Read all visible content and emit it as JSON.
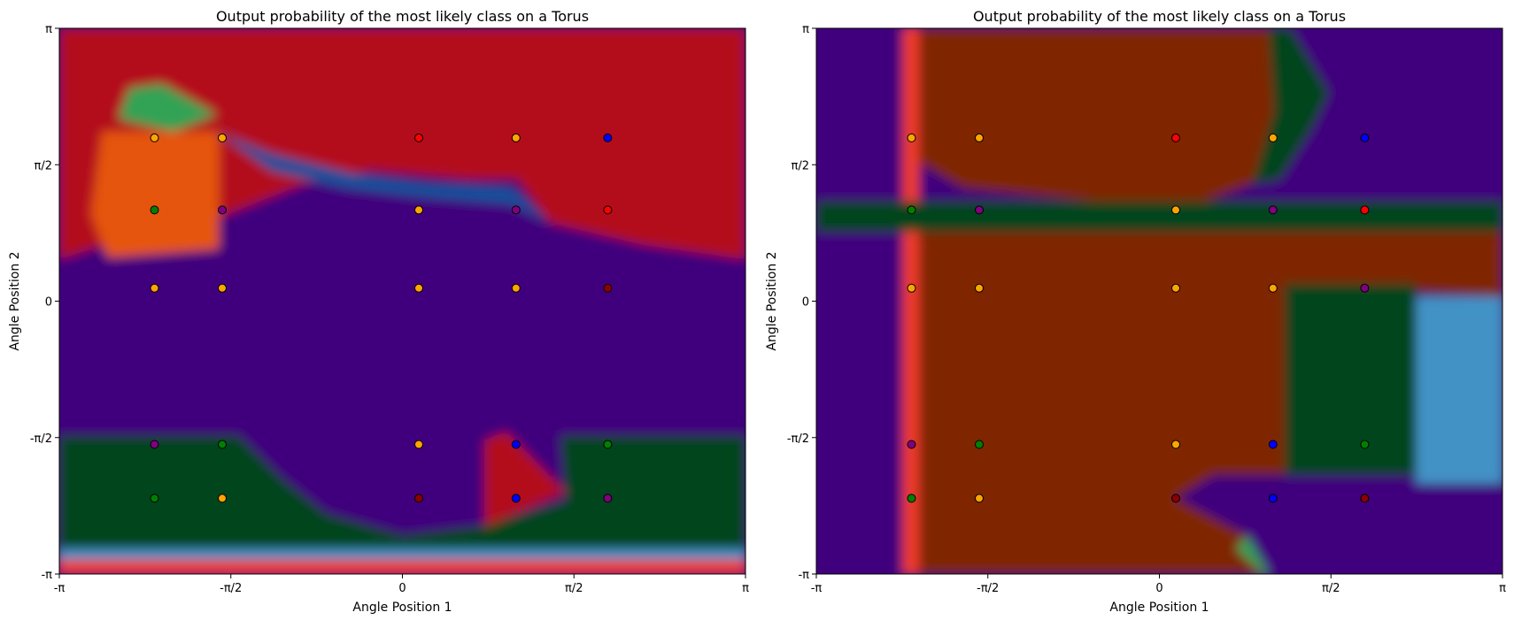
{
  "class_colors": {
    "orange": "#ffa500",
    "purple": "#800080",
    "green": "#008000",
    "red": "#ff0000",
    "blue": "#0000ff",
    "darkred": "#8b0000"
  },
  "chart_data": [
    {
      "type": "heatmap",
      "title": "Output probability of the most likely class on a Torus",
      "xlabel": "Angle Position 1",
      "ylabel": "Angle Position 2",
      "xlim": [
        -3.1416,
        3.1416
      ],
      "ylim": [
        -3.1416,
        3.1416
      ],
      "xticks": [
        {
          "v": -3.1416,
          "label": "-π"
        },
        {
          "v": -1.5708,
          "label": "-π/2"
        },
        {
          "v": 0,
          "label": "0"
        },
        {
          "v": 1.5708,
          "label": "π/2"
        },
        {
          "v": 3.1416,
          "label": "π"
        }
      ],
      "yticks": [
        {
          "v": -3.1416,
          "label": "-π"
        },
        {
          "v": -1.5708,
          "label": "-π/2"
        },
        {
          "v": 0,
          "label": "0"
        },
        {
          "v": 1.5708,
          "label": "π/2"
        },
        {
          "v": 3.1416,
          "label": "π"
        }
      ],
      "regions": [
        {
          "cls": "red",
          "prob": "high",
          "points": [
            [
              -3.1416,
              0.48
            ],
            [
              -2.4,
              0.78
            ],
            [
              -1.6,
              1.0
            ],
            [
              -0.9,
              1.35
            ],
            [
              -0.3,
              1.5
            ],
            [
              0.6,
              1.4
            ],
            [
              1.05,
              1.4
            ],
            [
              1.35,
              0.9
            ],
            [
              2.2,
              0.65
            ],
            [
              3.1416,
              0.48
            ],
            [
              3.1416,
              3.1416
            ],
            [
              -3.1416,
              3.1416
            ]
          ]
        },
        {
          "cls": "orange",
          "prob": "mid",
          "points": [
            [
              -2.75,
              1.95
            ],
            [
              -1.68,
              1.95
            ],
            [
              -1.68,
              0.6
            ],
            [
              -2.7,
              0.5
            ],
            [
              -2.85,
              1.0
            ]
          ]
        },
        {
          "cls": "green",
          "prob": "mid",
          "points": [
            [
              -2.5,
              2.45
            ],
            [
              -2.2,
              2.5
            ],
            [
              -1.7,
              2.15
            ],
            [
              -2.1,
              1.95
            ],
            [
              -2.6,
              2.1
            ]
          ]
        },
        {
          "cls": "blue",
          "prob": "high",
          "points": [
            [
              -1.7,
              1.95
            ],
            [
              -1.2,
              1.7
            ],
            [
              -0.4,
              1.45
            ],
            [
              0.2,
              1.35
            ],
            [
              1.0,
              1.3
            ],
            [
              1.35,
              0.9
            ],
            [
              1.0,
              1.12
            ],
            [
              0.2,
              1.2
            ],
            [
              -0.5,
              1.3
            ],
            [
              -1.2,
              1.5
            ]
          ]
        },
        {
          "cls": "purple",
          "prob": "high",
          "points": [
            [
              -3.1416,
              0.48
            ],
            [
              3.1416,
              0.48
            ],
            [
              3.1416,
              -1.55
            ],
            [
              -3.1416,
              -1.55
            ]
          ]
        },
        {
          "cls": "green",
          "prob": "high",
          "points": [
            [
              -3.1416,
              -1.55
            ],
            [
              -1.5,
              -1.55
            ],
            [
              -1.1,
              -2.05
            ],
            [
              -0.7,
              -2.45
            ],
            [
              0,
              -2.7
            ],
            [
              0.7,
              -2.6
            ],
            [
              1.5,
              -2.3
            ],
            [
              1.45,
              -1.55
            ],
            [
              3.1416,
              -1.55
            ],
            [
              3.1416,
              -2.85
            ],
            [
              -3.1416,
              -2.85
            ]
          ]
        },
        {
          "cls": "red",
          "prob": "high",
          "points": [
            [
              0.75,
              -1.6
            ],
            [
              0.95,
              -1.5
            ],
            [
              1.5,
              -2.2
            ],
            [
              0.75,
              -2.6
            ]
          ]
        },
        {
          "cls": "blue",
          "prob": "mid",
          "points": [
            [
              -3.1416,
              -2.85
            ],
            [
              3.1416,
              -2.85
            ],
            [
              3.1416,
              -2.98
            ],
            [
              -3.1416,
              -2.98
            ]
          ]
        },
        {
          "cls": "red",
          "prob": "mid",
          "points": [
            [
              -3.1416,
              -2.98
            ],
            [
              3.1416,
              -2.98
            ],
            [
              3.1416,
              -3.1416
            ],
            [
              -3.1416,
              -3.1416
            ]
          ]
        }
      ],
      "points": [
        {
          "x": -2.27,
          "y": 1.88,
          "cls": "orange"
        },
        {
          "x": -1.65,
          "y": 1.88,
          "cls": "orange"
        },
        {
          "x": 0.15,
          "y": 1.88,
          "cls": "red"
        },
        {
          "x": 1.04,
          "y": 1.88,
          "cls": "orange"
        },
        {
          "x": 1.88,
          "y": 1.88,
          "cls": "blue"
        },
        {
          "x": -2.27,
          "y": 1.05,
          "cls": "green"
        },
        {
          "x": -1.65,
          "y": 1.05,
          "cls": "purple"
        },
        {
          "x": 0.15,
          "y": 1.05,
          "cls": "orange"
        },
        {
          "x": 1.04,
          "y": 1.05,
          "cls": "purple"
        },
        {
          "x": 1.88,
          "y": 1.05,
          "cls": "red"
        },
        {
          "x": -2.27,
          "y": 0.15,
          "cls": "orange"
        },
        {
          "x": -1.65,
          "y": 0.15,
          "cls": "orange"
        },
        {
          "x": 0.15,
          "y": 0.15,
          "cls": "orange"
        },
        {
          "x": 1.04,
          "y": 0.15,
          "cls": "orange"
        },
        {
          "x": 1.88,
          "y": 0.15,
          "cls": "darkred"
        },
        {
          "x": -2.27,
          "y": -1.65,
          "cls": "purple"
        },
        {
          "x": -1.65,
          "y": -1.65,
          "cls": "green"
        },
        {
          "x": 0.15,
          "y": -1.65,
          "cls": "orange"
        },
        {
          "x": 1.04,
          "y": -1.65,
          "cls": "blue"
        },
        {
          "x": 1.88,
          "y": -1.65,
          "cls": "green"
        },
        {
          "x": -2.27,
          "y": -2.27,
          "cls": "green"
        },
        {
          "x": -1.65,
          "y": -2.27,
          "cls": "orange"
        },
        {
          "x": 0.15,
          "y": -2.27,
          "cls": "darkred"
        },
        {
          "x": 1.04,
          "y": -2.27,
          "cls": "blue"
        },
        {
          "x": 1.88,
          "y": -2.27,
          "cls": "purple"
        }
      ]
    },
    {
      "type": "heatmap",
      "title": "Output probability of the most likely class on a Torus",
      "xlabel": "Angle Position 1",
      "ylabel": "Angle Position 2",
      "xlim": [
        -3.1416,
        3.1416
      ],
      "ylim": [
        -3.1416,
        3.1416
      ],
      "xticks": [
        {
          "v": -3.1416,
          "label": "-π"
        },
        {
          "v": -1.5708,
          "label": "-π/2"
        },
        {
          "v": 0,
          "label": "0"
        },
        {
          "v": 1.5708,
          "label": "π/2"
        },
        {
          "v": 3.1416,
          "label": "π"
        }
      ],
      "yticks": [
        {
          "v": -3.1416,
          "label": "-π"
        },
        {
          "v": -1.5708,
          "label": "-π/2"
        },
        {
          "v": 0,
          "label": "0"
        },
        {
          "v": 1.5708,
          "label": "π/2"
        },
        {
          "v": 3.1416,
          "label": "π"
        }
      ],
      "regions": [
        {
          "cls": "purple",
          "prob": "high",
          "points": [
            [
              -3.1416,
              3.1416
            ],
            [
              3.1416,
              3.1416
            ],
            [
              3.1416,
              -3.1416
            ],
            [
              -3.1416,
              -3.1416
            ]
          ]
        },
        {
          "cls": "red",
          "prob": "mid",
          "points": [
            [
              -2.35,
              3.1416
            ],
            [
              -2.2,
              3.1416
            ],
            [
              -2.2,
              -3.1416
            ],
            [
              -2.35,
              -3.1416
            ]
          ]
        },
        {
          "cls": "orange",
          "prob": "high",
          "points": [
            [
              -2.2,
              3.1416
            ],
            [
              1.0,
              3.1416
            ],
            [
              1.05,
              2.2
            ],
            [
              0.85,
              1.35
            ],
            [
              0.2,
              1.05
            ],
            [
              -1.8,
              1.3
            ],
            [
              -2.2,
              1.6
            ]
          ]
        },
        {
          "cls": "green",
          "prob": "high",
          "points": [
            [
              1.0,
              3.1416
            ],
            [
              1.2,
              3.1416
            ],
            [
              1.55,
              2.4
            ],
            [
              1.4,
              2.0
            ],
            [
              1.1,
              1.4
            ],
            [
              0.85,
              1.35
            ],
            [
              1.05,
              2.2
            ]
          ]
        },
        {
          "cls": "green",
          "prob": "high",
          "points": [
            [
              -3.1416,
              1.15
            ],
            [
              3.1416,
              1.15
            ],
            [
              3.1416,
              0.8
            ],
            [
              -3.1416,
              0.8
            ]
          ]
        },
        {
          "cls": "orange",
          "prob": "high",
          "points": [
            [
              -2.2,
              0.8
            ],
            [
              3.1416,
              0.8
            ],
            [
              3.1416,
              0.05
            ],
            [
              1.15,
              0.2
            ],
            [
              1.15,
              -2.0
            ],
            [
              0.5,
              -2.0
            ],
            [
              0.15,
              -2.27
            ],
            [
              0.8,
              -2.7
            ],
            [
              1.0,
              -3.1416
            ],
            [
              -2.2,
              -3.1416
            ]
          ]
        },
        {
          "cls": "green",
          "prob": "high",
          "points": [
            [
              1.15,
              0.2
            ],
            [
              2.35,
              0.2
            ],
            [
              2.35,
              -2.0
            ],
            [
              1.15,
              -2.0
            ]
          ]
        },
        {
          "cls": "blue",
          "prob": "mid",
          "points": [
            [
              2.35,
              0.05
            ],
            [
              3.1416,
              0.05
            ],
            [
              3.1416,
              -2.1
            ],
            [
              2.35,
              -2.1
            ]
          ]
        },
        {
          "cls": "green",
          "prob": "mid",
          "points": [
            [
              0.8,
              -2.7
            ],
            [
              1.0,
              -3.1416
            ],
            [
              0.95,
              -3.1416
            ],
            [
              0.7,
              -2.85
            ]
          ]
        }
      ],
      "points": [
        {
          "x": -2.27,
          "y": 1.88,
          "cls": "orange"
        },
        {
          "x": -1.65,
          "y": 1.88,
          "cls": "orange"
        },
        {
          "x": 0.15,
          "y": 1.88,
          "cls": "red"
        },
        {
          "x": 1.04,
          "y": 1.88,
          "cls": "orange"
        },
        {
          "x": 1.88,
          "y": 1.88,
          "cls": "blue"
        },
        {
          "x": -2.27,
          "y": 1.05,
          "cls": "green"
        },
        {
          "x": -1.65,
          "y": 1.05,
          "cls": "purple"
        },
        {
          "x": 0.15,
          "y": 1.05,
          "cls": "orange"
        },
        {
          "x": 1.04,
          "y": 1.05,
          "cls": "purple"
        },
        {
          "x": 1.88,
          "y": 1.05,
          "cls": "red"
        },
        {
          "x": -2.27,
          "y": 0.15,
          "cls": "orange"
        },
        {
          "x": -1.65,
          "y": 0.15,
          "cls": "orange"
        },
        {
          "x": 0.15,
          "y": 0.15,
          "cls": "orange"
        },
        {
          "x": 1.04,
          "y": 0.15,
          "cls": "orange"
        },
        {
          "x": 1.88,
          "y": 0.15,
          "cls": "purple"
        },
        {
          "x": -2.27,
          "y": -1.65,
          "cls": "purple"
        },
        {
          "x": -1.65,
          "y": -1.65,
          "cls": "green"
        },
        {
          "x": 0.15,
          "y": -1.65,
          "cls": "orange"
        },
        {
          "x": 1.04,
          "y": -1.65,
          "cls": "blue"
        },
        {
          "x": 1.88,
          "y": -1.65,
          "cls": "green"
        },
        {
          "x": -2.27,
          "y": -2.27,
          "cls": "green"
        },
        {
          "x": -1.65,
          "y": -2.27,
          "cls": "orange"
        },
        {
          "x": 0.15,
          "y": -2.27,
          "cls": "darkred"
        },
        {
          "x": 1.04,
          "y": -2.27,
          "cls": "blue"
        },
        {
          "x": 1.88,
          "y": -2.27,
          "cls": "darkred"
        }
      ]
    }
  ]
}
